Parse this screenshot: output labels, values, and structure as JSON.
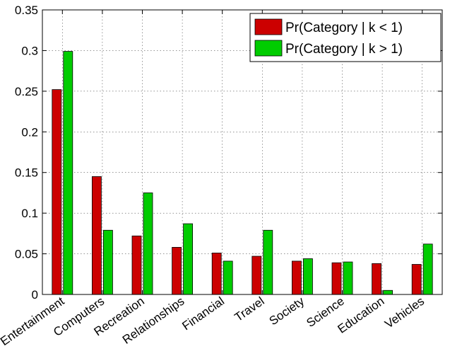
{
  "chart_data": {
    "type": "bar",
    "categories": [
      "Entertainment",
      "Computers",
      "Recreation",
      "Relationships",
      "Financial",
      "Travel",
      "Society",
      "Science",
      "Education",
      "Vehicles"
    ],
    "series": [
      {
        "name": "Pr(Category | k < 1)",
        "color": "#cc0000",
        "values": [
          0.252,
          0.145,
          0.072,
          0.058,
          0.051,
          0.047,
          0.041,
          0.039,
          0.038,
          0.037
        ]
      },
      {
        "name": "Pr(Category | k > 1)",
        "color": "#00cc00",
        "values": [
          0.299,
          0.079,
          0.125,
          0.087,
          0.041,
          0.079,
          0.044,
          0.04,
          0.005,
          0.062
        ]
      }
    ],
    "ylim": [
      0,
      0.35
    ],
    "yticks": [
      "0",
      "0.05",
      "0.1",
      "0.15",
      "0.2",
      "0.25",
      "0.3",
      "0.35"
    ],
    "yticks_values": [
      0,
      0.05,
      0.1,
      0.15,
      0.2,
      0.25,
      0.3,
      0.35
    ],
    "grid": true,
    "legend_position": "top-right",
    "title": "",
    "xlabel": "",
    "ylabel": ""
  }
}
